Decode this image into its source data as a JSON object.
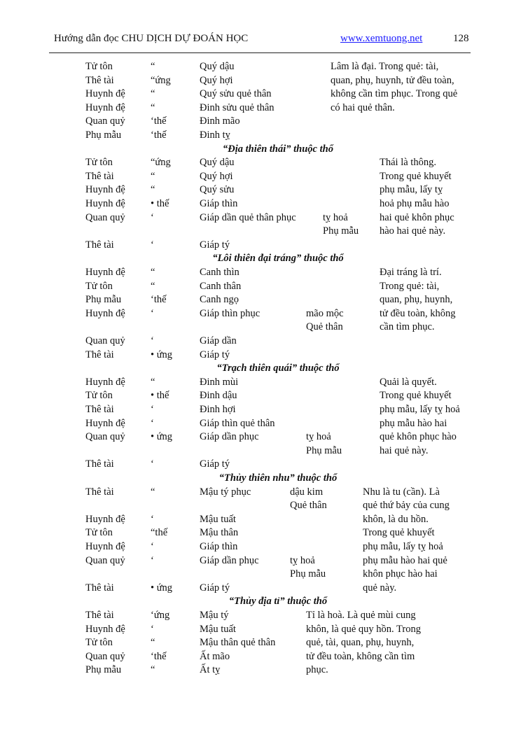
{
  "header": {
    "title": "Hướng dẫn đọc CHU DỊCH DỰ ĐOÁN HỌC",
    "link": "www.xemtuong.net",
    "page_number": "128"
  },
  "lines": [
    {
      "c1": "Tử tôn",
      "c2": "“",
      "c3": "Quý dậu",
      "c5": "Lâm là đại. Trong quẻ: tài,"
    },
    {
      "c1": "Thê tài",
      "c2": "“ứng",
      "c3": "Quý hợi",
      "c5": "quan, phụ, huynh, tử đều toàn,"
    },
    {
      "c1": "Huynh đệ",
      "c2": "“",
      "c3": "Quý sửu quẻ thân",
      "c5": "không cần tìm phục. Trong quẻ"
    },
    {
      "c1": "Huynh đệ",
      "c2": "“",
      "c3": "Đinh sửu quẻ thân",
      "c5": "có hai quẻ thân."
    },
    {
      "c1": "Quan quỷ",
      "c2": "‘thế",
      "c3": "Đinh mão"
    },
    {
      "c1": "Phụ mẫu",
      "c2": "‘thế",
      "c3": "Đinh tỵ"
    },
    {
      "heading": "“Địa thiên thái” thuộc thổ"
    },
    {
      "c1": "Tử tôn",
      "c2": "“ứng",
      "c3": "Quý dậu",
      "c5": "Thái là thông."
    },
    {
      "c1": "Thê tài",
      "c2": "“",
      "c3": "Quý hợi",
      "c5": "Trong quẻ khuyết"
    },
    {
      "c1": "Huynh đệ",
      "c2": "“",
      "c3": "Quý sửu",
      "c5": "phụ mẫu, lấy tỵ"
    },
    {
      "c1": "Huynh đệ",
      "c2": "• thế",
      "c3": "Giáp thìn",
      "c5": "hoả phụ mẫu hào"
    },
    {
      "c1": "Quan quỷ",
      "c2": "‘",
      "c3": "Giáp dần quẻ thân phục",
      "c4": "tỵ hoả",
      "c5": "hai quẻ khôn phục"
    },
    {
      "c4": "Phụ mẫu",
      "c5": "hào hai quẻ này."
    },
    {
      "c1": "Thê tài",
      "c2": "‘",
      "c3": "Giáp tý"
    },
    {
      "heading": "“Lôi thiên đại tráng” thuộc thổ"
    },
    {
      "c1": "Huynh đệ",
      "c2": "“",
      "c3": "Canh thìn",
      "c5": "Đại tráng là trí."
    },
    {
      "c1": "Tử tôn",
      "c2": "“",
      "c3": "Canh thân",
      "c5": "Trong quẻ: tài,"
    },
    {
      "c1": "Phụ mẫu",
      "c2": "‘thế",
      "c3": "Canh ngọ",
      "c5": "quan, phụ, huynh,"
    },
    {
      "c1": "Huynh đệ",
      "c2": "‘",
      "c3": "Giáp thìn phục",
      "c4": "mão mộc",
      "c5": "tử đều toàn, không"
    },
    {
      "c4": "Quẻ thân",
      "c5": "cần tìm phục."
    },
    {
      "c1": "Quan quỷ",
      "c2": "‘",
      "c3": "Giáp dần"
    },
    {
      "c1": "Thê tài",
      "c2": "• ứng",
      "c3": "Giáp tý"
    },
    {
      "heading": "“Trạch thiên quái” thuộc thổ"
    },
    {
      "c1": "Huynh đệ",
      "c2": "“",
      "c3": "Đinh mùi",
      "c5": "Quải là quyết."
    },
    {
      "c1": "Tử tôn",
      "c2": "• thế",
      "c3": "Đinh dậu",
      "c5": "Trong quẻ khuyết"
    },
    {
      "c1": "Thê tài",
      "c2": "‘",
      "c3": "Đinh hợi",
      "c5": "phụ mẫu, lấy tỵ hoả"
    },
    {
      "c1": "Huynh đệ",
      "c2": "‘",
      "c3": "Giáp thìn quẻ thân",
      "c5": "phụ mẫu hào hai"
    },
    {
      "c1": "Quan quỷ",
      "c2": "• ứng",
      "c3": "Giáp dần phục",
      "c4": "tỵ hoả",
      "c5": "quẻ khôn phục hào"
    },
    {
      "c4": "Phụ mẫu",
      "c5": "hai quẻ này."
    },
    {
      "c1": "Thê tài",
      "c2": "‘",
      "c3": "Giáp tý"
    },
    {
      "heading": "“Thủy thiên nhu” thuộc thổ"
    },
    {
      "c1": "Thê tài",
      "c2": "“",
      "c3": "Mậu tý phục",
      "c4": "dậu kim",
      "c5": "Nhu là tu (cần). Là"
    },
    {
      "c4": "Quẻ thân",
      "c5": "quẻ thứ bảy của cung"
    },
    {
      "c1": "Huynh đệ",
      "c2": "‘",
      "c3": "Mậu tuất",
      "c5": "khôn, là du hồn."
    },
    {
      "c1": "Tử tôn",
      "c2": "“thế",
      "c3": "Mậu thân",
      "c5": "Trong quẻ khuyết"
    },
    {
      "c1": "Huynh đệ",
      "c2": "‘",
      "c3": "Giáp thìn",
      "c5": "phụ mẫu, lấy tỵ hoả"
    },
    {
      "c1": "Quan quỷ",
      "c2": "‘",
      "c3": "Giáp dần phục",
      "c4": "tỵ hoả",
      "c5": "phụ mẫu hào hai quẻ"
    },
    {
      "c4": "Phụ mẫu",
      "c5": "khôn phục hào hai"
    },
    {
      "c1": "Thê tài",
      "c2": "• ứng",
      "c3": "Giáp tý",
      "c5": "quẻ này."
    },
    {
      "heading": "“Thủy địa tỉ” thuộc thổ"
    },
    {
      "c1": "Thê tài",
      "c2": "‘ứng",
      "c3": "Mậu tý",
      "c5": "Tỉ là hoà. Là quẻ mùi cung"
    },
    {
      "c1": "Huynh đệ",
      "c2": "‘",
      "c3": "Mậu tuất",
      "c5": "khôn, là quẻ quy hồn. Trong"
    },
    {
      "c1": "Tử tôn",
      "c2": "“",
      "c3": "Mậu thân quẻ thân",
      "c5": "quẻ, tài, quan, phụ, huynh,"
    },
    {
      "c1": "Quan quỷ",
      "c2": "‘thế",
      "c3": "Ất mão",
      "c5": "tử đều toàn, không cần tìm"
    },
    {
      "c1": "Phụ mẫu",
      "c2": "“",
      "c3": "Ất tỵ",
      "c5": "phục."
    }
  ]
}
